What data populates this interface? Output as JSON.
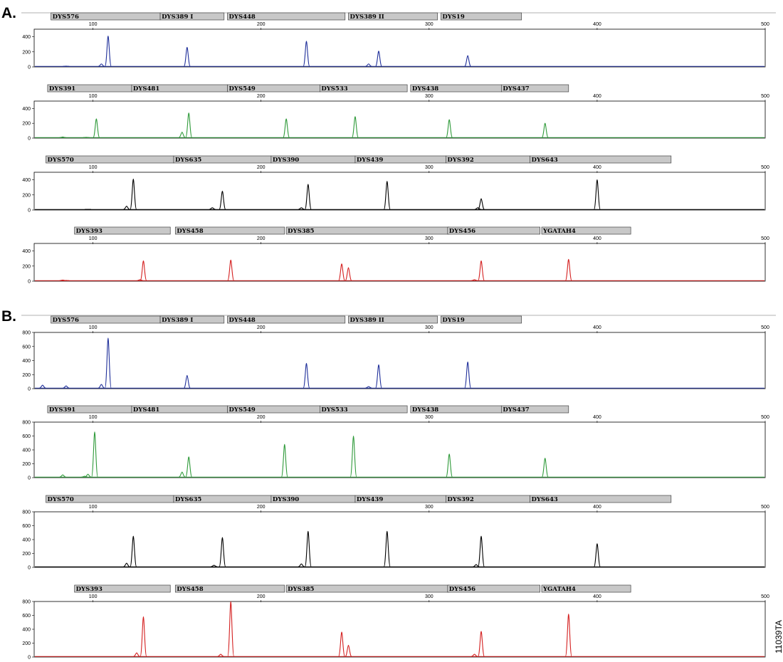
{
  "figure_id": "11039TA",
  "colors": {
    "blue": "#1f2f9a",
    "green": "#2f9a3a",
    "black": "#000000",
    "red": "#d41f1f",
    "marker_fill": "#c8c8c8",
    "marker_border": "#444444"
  },
  "chart_data": [
    {
      "type": "line",
      "section": "A.",
      "x_ticks": [
        100,
        200,
        300,
        400,
        500
      ],
      "panels": [
        {
          "color": "blue",
          "ylim": [
            0,
            500
          ],
          "y_ticks": [
            0,
            200,
            400
          ],
          "markers": [
            {
              "label": "DYS576",
              "start": 75,
              "end": 140
            },
            {
              "label": "DYS389 I",
              "start": 140,
              "end": 178
            },
            {
              "label": "DYS448",
              "start": 180,
              "end": 250
            },
            {
              "label": "DYS389 II",
              "start": 252,
              "end": 305
            },
            {
              "label": "DYS19",
              "start": 307,
              "end": 355
            }
          ],
          "peaks": [
            {
              "x": 84,
              "h": 10
            },
            {
              "x": 105,
              "h": 40
            },
            {
              "x": 109,
              "h": 410
            },
            {
              "x": 156,
              "h": 260
            },
            {
              "x": 227,
              "h": 340
            },
            {
              "x": 264,
              "h": 40
            },
            {
              "x": 270,
              "h": 210
            },
            {
              "x": 323,
              "h": 150
            }
          ]
        },
        {
          "color": "green",
          "ylim": [
            0,
            500
          ],
          "y_ticks": [
            0,
            200,
            400
          ],
          "markers": [
            {
              "label": "DYS391",
              "start": 73,
              "end": 123
            },
            {
              "label": "DYS481",
              "start": 123,
              "end": 180
            },
            {
              "label": "DYS549",
              "start": 180,
              "end": 235
            },
            {
              "label": "DYS533",
              "start": 235,
              "end": 287
            },
            {
              "label": "DYS438",
              "start": 289,
              "end": 343
            },
            {
              "label": "DYS437",
              "start": 343,
              "end": 383
            }
          ],
          "peaks": [
            {
              "x": 82,
              "h": 15
            },
            {
              "x": 96,
              "h": 10
            },
            {
              "x": 102,
              "h": 260
            },
            {
              "x": 153,
              "h": 80
            },
            {
              "x": 157,
              "h": 340
            },
            {
              "x": 215,
              "h": 260
            },
            {
              "x": 256,
              "h": 290
            },
            {
              "x": 312,
              "h": 250
            },
            {
              "x": 369,
              "h": 200
            }
          ]
        },
        {
          "color": "black",
          "ylim": [
            0,
            500
          ],
          "y_ticks": [
            0,
            200,
            400
          ],
          "markers": [
            {
              "label": "DYS570",
              "start": 72,
              "end": 148
            },
            {
              "label": "DYS635",
              "start": 148,
              "end": 206
            },
            {
              "label": "DYS390",
              "start": 206,
              "end": 256
            },
            {
              "label": "DYS439",
              "start": 256,
              "end": 310
            },
            {
              "label": "DYS392",
              "start": 310,
              "end": 360
            },
            {
              "label": "DYS643",
              "start": 360,
              "end": 444
            }
          ],
          "peaks": [
            {
              "x": 97,
              "h": 8
            },
            {
              "x": 120,
              "h": 50
            },
            {
              "x": 124,
              "h": 410
            },
            {
              "x": 171,
              "h": 30
            },
            {
              "x": 177,
              "h": 250
            },
            {
              "x": 224,
              "h": 30
            },
            {
              "x": 228,
              "h": 340
            },
            {
              "x": 275,
              "h": 380
            },
            {
              "x": 329,
              "h": 30
            },
            {
              "x": 331,
              "h": 150
            },
            {
              "x": 400,
              "h": 400
            }
          ]
        },
        {
          "color": "red",
          "ylim": [
            0,
            500
          ],
          "y_ticks": [
            0,
            200,
            400
          ],
          "markers": [
            {
              "label": "DYS393",
              "start": 89,
              "end": 146
            },
            {
              "label": "DYS458",
              "start": 149,
              "end": 214
            },
            {
              "label": "DYS385",
              "start": 215,
              "end": 312
            },
            {
              "label": "DYS456",
              "start": 311,
              "end": 366
            },
            {
              "label": "YGATAH4",
              "start": 367,
              "end": 420
            }
          ],
          "peaks": [
            {
              "x": 82,
              "h": 15
            },
            {
              "x": 84,
              "h": 10
            },
            {
              "x": 128,
              "h": 20
            },
            {
              "x": 130,
              "h": 270
            },
            {
              "x": 182,
              "h": 280
            },
            {
              "x": 248,
              "h": 230
            },
            {
              "x": 252,
              "h": 180
            },
            {
              "x": 327,
              "h": 20
            },
            {
              "x": 331,
              "h": 270
            },
            {
              "x": 383,
              "h": 290
            }
          ]
        }
      ]
    },
    {
      "type": "line",
      "section": "B.",
      "x_ticks": [
        100,
        200,
        300,
        400,
        500
      ],
      "panels": [
        {
          "color": "blue",
          "ylim": [
            0,
            800
          ],
          "y_ticks": [
            0,
            200,
            400,
            600,
            800
          ],
          "markers": [
            {
              "label": "DYS576",
              "start": 75,
              "end": 140
            },
            {
              "label": "DYS389 I",
              "start": 140,
              "end": 178
            },
            {
              "label": "DYS448",
              "start": 180,
              "end": 250
            },
            {
              "label": "DYS389 II",
              "start": 252,
              "end": 305
            },
            {
              "label": "DYS19",
              "start": 307,
              "end": 355
            }
          ],
          "peaks": [
            {
              "x": 70,
              "h": 50
            },
            {
              "x": 84,
              "h": 40
            },
            {
              "x": 105,
              "h": 60
            },
            {
              "x": 109,
              "h": 720
            },
            {
              "x": 156,
              "h": 190
            },
            {
              "x": 227,
              "h": 360
            },
            {
              "x": 264,
              "h": 30
            },
            {
              "x": 270,
              "h": 340
            },
            {
              "x": 323,
              "h": 380
            }
          ]
        },
        {
          "color": "green",
          "ylim": [
            0,
            800
          ],
          "y_ticks": [
            0,
            200,
            400,
            600,
            800
          ],
          "markers": [
            {
              "label": "DYS391",
              "start": 73,
              "end": 123
            },
            {
              "label": "DYS481",
              "start": 123,
              "end": 180
            },
            {
              "label": "DYS549",
              "start": 180,
              "end": 235
            },
            {
              "label": "DYS533",
              "start": 235,
              "end": 287
            },
            {
              "label": "DYS438",
              "start": 289,
              "end": 343
            },
            {
              "label": "DYS437",
              "start": 343,
              "end": 383
            }
          ],
          "peaks": [
            {
              "x": 82,
              "h": 40
            },
            {
              "x": 95,
              "h": 20
            },
            {
              "x": 97,
              "h": 50
            },
            {
              "x": 101,
              "h": 660
            },
            {
              "x": 153,
              "h": 80
            },
            {
              "x": 157,
              "h": 300
            },
            {
              "x": 214,
              "h": 480
            },
            {
              "x": 255,
              "h": 600
            },
            {
              "x": 312,
              "h": 340
            },
            {
              "x": 369,
              "h": 280
            }
          ]
        },
        {
          "color": "black",
          "ylim": [
            0,
            800
          ],
          "y_ticks": [
            0,
            200,
            400,
            600,
            800
          ],
          "markers": [
            {
              "label": "DYS570",
              "start": 72,
              "end": 148
            },
            {
              "label": "DYS635",
              "start": 148,
              "end": 206
            },
            {
              "label": "DYS390",
              "start": 206,
              "end": 256
            },
            {
              "label": "DYS439",
              "start": 256,
              "end": 310
            },
            {
              "label": "DYS392",
              "start": 310,
              "end": 360
            },
            {
              "label": "DYS643",
              "start": 360,
              "end": 444
            }
          ],
          "peaks": [
            {
              "x": 120,
              "h": 60
            },
            {
              "x": 124,
              "h": 450
            },
            {
              "x": 172,
              "h": 30
            },
            {
              "x": 177,
              "h": 430
            },
            {
              "x": 224,
              "h": 50
            },
            {
              "x": 228,
              "h": 520
            },
            {
              "x": 275,
              "h": 520
            },
            {
              "x": 328,
              "h": 40
            },
            {
              "x": 331,
              "h": 450
            },
            {
              "x": 400,
              "h": 340
            }
          ]
        },
        {
          "color": "red",
          "ylim": [
            0,
            800
          ],
          "y_ticks": [
            0,
            200,
            400,
            600,
            800
          ],
          "markers": [
            {
              "label": "DYS393",
              "start": 89,
              "end": 146
            },
            {
              "label": "DYS458",
              "start": 149,
              "end": 214
            },
            {
              "label": "DYS385",
              "start": 215,
              "end": 312
            },
            {
              "label": "DYS456",
              "start": 311,
              "end": 366
            },
            {
              "label": "YGATAH4",
              "start": 367,
              "end": 420
            }
          ],
          "peaks": [
            {
              "x": 126,
              "h": 60
            },
            {
              "x": 130,
              "h": 580
            },
            {
              "x": 176,
              "h": 40
            },
            {
              "x": 182,
              "h": 800
            },
            {
              "x": 248,
              "h": 360
            },
            {
              "x": 252,
              "h": 170
            },
            {
              "x": 327,
              "h": 40
            },
            {
              "x": 331,
              "h": 370
            },
            {
              "x": 383,
              "h": 620
            }
          ]
        }
      ]
    }
  ]
}
